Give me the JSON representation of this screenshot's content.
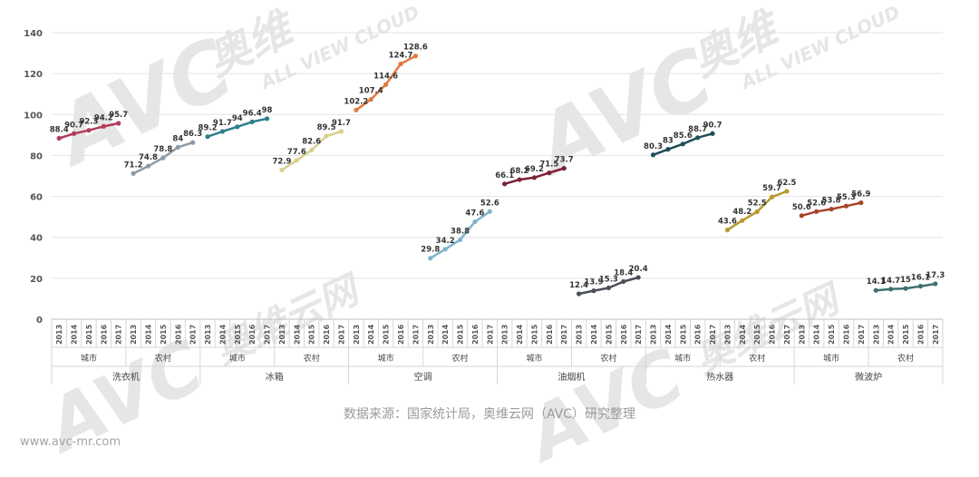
{
  "chart_data": {
    "type": "line",
    "ylim": [
      0,
      140
    ],
    "yticks": [
      0,
      20,
      40,
      60,
      80,
      100,
      120,
      140
    ],
    "grid": true,
    "years": [
      "2013",
      "2014",
      "2015",
      "2016",
      "2017"
    ],
    "groups": [
      {
        "name": "洗衣机",
        "series": [
          {
            "name": "城市",
            "color": "#b23a5a",
            "values": [
              88.4,
              90.7,
              92.3,
              94.2,
              95.7
            ]
          },
          {
            "name": "农村",
            "color": "#8a9aa6",
            "values": [
              71.2,
              74.8,
              78.8,
              84,
              86.3
            ]
          }
        ]
      },
      {
        "name": "冰箱",
        "series": [
          {
            "name": "城市",
            "color": "#2f7d8c",
            "values": [
              89.2,
              91.7,
              94,
              96.4,
              98
            ]
          },
          {
            "name": "农村",
            "color": "#d8d08c",
            "values": [
              72.9,
              77.6,
              82.6,
              89.5,
              91.7
            ]
          }
        ]
      },
      {
        "name": "空调",
        "series": [
          {
            "name": "城市",
            "color": "#e07a43",
            "values": [
              102.2,
              107.4,
              114.6,
              124.7,
              128.6
            ]
          },
          {
            "name": "农村",
            "color": "#7eb4cc",
            "values": [
              29.8,
              34.2,
              38.8,
              47.6,
              52.6
            ]
          }
        ]
      },
      {
        "name": "油烟机",
        "series": [
          {
            "name": "城市",
            "color": "#7d1f35",
            "values": [
              66.1,
              68.2,
              69.2,
              71.5,
              73.7
            ]
          },
          {
            "name": "农村",
            "color": "#4a4f57",
            "values": [
              12.4,
              13.9,
              15.3,
              18.4,
              20.4
            ]
          }
        ]
      },
      {
        "name": "热水器",
        "series": [
          {
            "name": "城市",
            "color": "#1e4f57",
            "values": [
              80.3,
              83,
              85.6,
              88.7,
              90.7
            ]
          },
          {
            "name": "农村",
            "color": "#b89a30",
            "values": [
              43.6,
              48.2,
              52.5,
              59.7,
              62.5
            ]
          }
        ]
      },
      {
        "name": "微波炉",
        "series": [
          {
            "name": "城市",
            "color": "#a8452b",
            "values": [
              50.6,
              52.6,
              53.8,
              55.3,
              56.9
            ]
          },
          {
            "name": "农村",
            "color": "#3f6f6f",
            "values": [
              14.1,
              14.7,
              15,
              16.1,
              17.3
            ]
          }
        ]
      }
    ]
  },
  "watermark": {
    "brand": "AVC",
    "cn": "奥维",
    "cn2": "奥维云网",
    "en": "ALL VIEW CLOUD"
  },
  "footer": {
    "source": "数据来源：国家统计局，奥维云网（AVC）研究整理",
    "website": "www.avc-mr.com"
  }
}
